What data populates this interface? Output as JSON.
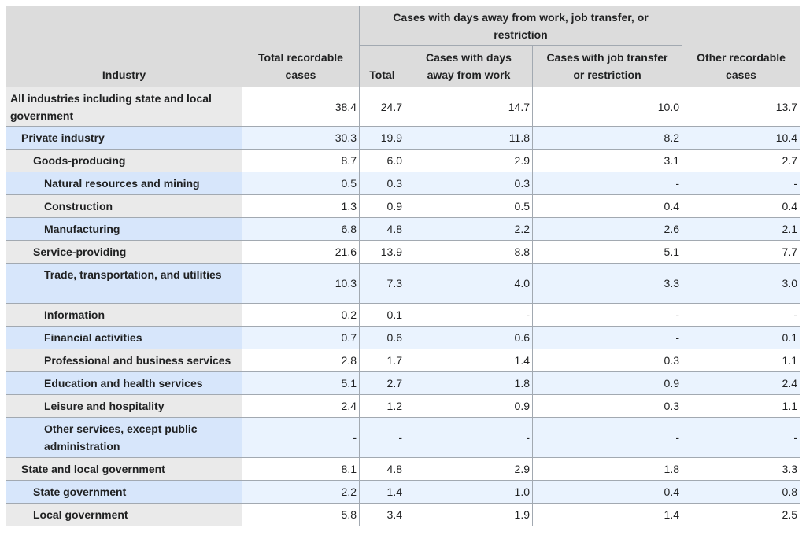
{
  "headers": {
    "industry": "Industry",
    "total_recordable": "Total recordable cases",
    "group": "Cases with days away from work, job transfer, or restriction",
    "total": "Total",
    "days_away": "Cases with days away from work",
    "job_transfer": "Cases with job transfer or restriction",
    "other": "Other recordable cases"
  },
  "rows": [
    {
      "label": "All industries including state and local government",
      "level": 0,
      "values": [
        "38.4",
        "24.7",
        "14.7",
        "10.0",
        "13.7"
      ]
    },
    {
      "label": "Private industry",
      "level": 1,
      "values": [
        "30.3",
        "19.9",
        "11.8",
        "8.2",
        "10.4"
      ]
    },
    {
      "label": "Goods-producing",
      "level": 2,
      "values": [
        "8.7",
        "6.0",
        "2.9",
        "3.1",
        "2.7"
      ]
    },
    {
      "label": "Natural resources and mining",
      "level": 3,
      "values": [
        "0.5",
        "0.3",
        "0.3",
        "-",
        "-"
      ]
    },
    {
      "label": "Construction",
      "level": 3,
      "values": [
        "1.3",
        "0.9",
        "0.5",
        "0.4",
        "0.4"
      ]
    },
    {
      "label": "Manufacturing",
      "level": 3,
      "values": [
        "6.8",
        "4.8",
        "2.2",
        "2.6",
        "2.1"
      ]
    },
    {
      "label": "Service-providing",
      "level": 2,
      "values": [
        "21.6",
        "13.9",
        "8.8",
        "5.1",
        "7.7"
      ]
    },
    {
      "label": "Trade, transportation, and utilities",
      "level": 3,
      "values": [
        "10.3",
        "7.3",
        "4.0",
        "3.3",
        "3.0"
      ]
    },
    {
      "label": "Information",
      "level": 3,
      "values": [
        "0.2",
        "0.1",
        "-",
        "-",
        "-"
      ]
    },
    {
      "label": "Financial activities",
      "level": 3,
      "values": [
        "0.7",
        "0.6",
        "0.6",
        "-",
        "0.1"
      ]
    },
    {
      "label": "Professional and business services",
      "level": 3,
      "values": [
        "2.8",
        "1.7",
        "1.4",
        "0.3",
        "1.1"
      ]
    },
    {
      "label": "Education and health services",
      "level": 3,
      "values": [
        "5.1",
        "2.7",
        "1.8",
        "0.9",
        "2.4"
      ]
    },
    {
      "label": "Leisure and hospitality",
      "level": 3,
      "values": [
        "2.4",
        "1.2",
        "0.9",
        "0.3",
        "1.1"
      ]
    },
    {
      "label": "Other services, except public administration",
      "level": 3,
      "values": [
        "-",
        "-",
        "-",
        "-",
        "-"
      ]
    },
    {
      "label": "State and local government",
      "level": 1,
      "values": [
        "8.1",
        "4.8",
        "2.9",
        "1.8",
        "3.3"
      ]
    },
    {
      "label": "State government",
      "level": 2,
      "values": [
        "2.2",
        "1.4",
        "1.0",
        "0.4",
        "0.8"
      ]
    },
    {
      "label": "Local government",
      "level": 2,
      "values": [
        "5.8",
        "3.4",
        "1.9",
        "1.4",
        "2.5"
      ]
    }
  ]
}
